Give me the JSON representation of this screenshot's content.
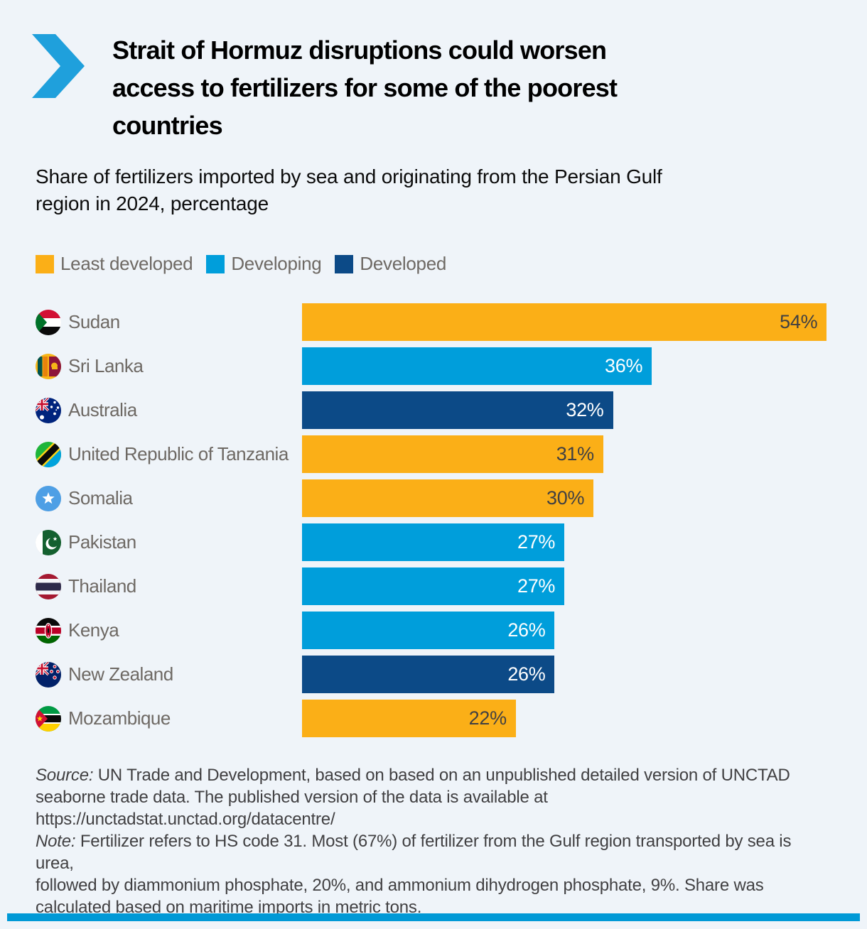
{
  "page": {
    "background": "#EFF4F9",
    "accent_bar_color": "#0099D6",
    "chevron_color": "#1FA0DC"
  },
  "header": {
    "title": "Strait of Hormuz disruptions could worsen access to fertilizers for some of the poorest countries",
    "title_lines": [
      "Strait of Hormuz disruptions could worsen",
      "access to fertilizers for some of the poorest",
      "countries"
    ],
    "subtitle": "Share of fertilizers imported by sea and originating from the Persian Gulf region in 2024, percentage",
    "subtitle_lines": [
      "Share of fertilizers imported by sea and originating from the Persian Gulf",
      "region in 2024, percentage"
    ]
  },
  "legend": [
    {
      "label": "Least developed",
      "key": "least_developed",
      "color": "#FBAF17"
    },
    {
      "label": "Developing",
      "key": "developing",
      "color": "#009EDB"
    },
    {
      "label": "Developed",
      "key": "developed",
      "color": "#0C4A87"
    }
  ],
  "chart_data": {
    "type": "bar",
    "orientation": "horizontal",
    "title": "Share of fertilizers imported by sea and originating from the Persian Gulf region in 2024, percentage",
    "unit": "%",
    "xlim": [
      0,
      54
    ],
    "max_value": 54,
    "grid": false,
    "legend_position": "top",
    "categories": [
      "Sudan",
      "Sri Lanka",
      "Australia",
      "United Republic of Tanzania",
      "Somalia",
      "Pakistan",
      "Thailand",
      "Kenya",
      "New Zealand",
      "Mozambique"
    ],
    "values": [
      54,
      36,
      32,
      31,
      30,
      27,
      27,
      26,
      26,
      22
    ],
    "value_labels": [
      "54%",
      "36%",
      "32%",
      "31%",
      "30%",
      "27%",
      "27%",
      "26%",
      "26%",
      "22%"
    ],
    "groups": [
      "least_developed",
      "developing",
      "developed",
      "least_developed",
      "least_developed",
      "developing",
      "developing",
      "developing",
      "developed",
      "least_developed"
    ],
    "group_colors": {
      "least_developed": "#FBAF17",
      "developing": "#009EDB",
      "developed": "#0C4A87"
    },
    "value_label_colors": {
      "least_developed": "#414042",
      "developing": "#FFFFFF",
      "developed": "#FFFFFF"
    }
  },
  "footnotes": {
    "source": {
      "prefix": "Source:",
      "lines": [
        "UN Trade and Development, based on based on an unpublished detailed version of UNCTAD",
        "seaborne trade data. The published version of the data is available at",
        "https://unctadstat.unctad.org/datacentre/"
      ]
    },
    "note": {
      "prefix": "Note:",
      "lines": [
        "Fertilizer refers to HS code 31. Most (67%) of fertilizer from the Gulf region transported by sea is urea,",
        "followed by diammonium phosphate, 20%, and ammonium dihydrogen phosphate, 9%. Share was",
        "calculated based on maritime imports in metric tons."
      ]
    }
  }
}
